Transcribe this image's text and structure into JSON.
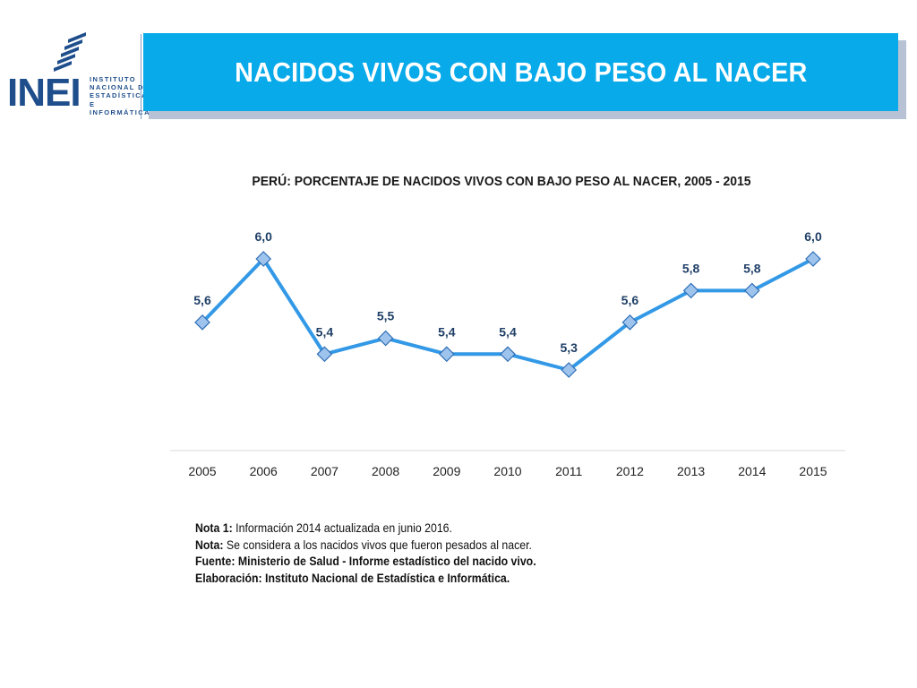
{
  "logo": {
    "word": "INEI",
    "lines": [
      "INSTITUTO",
      "NACIONAL DE",
      "ESTADÍSTICA E",
      "INFORMÁTICA"
    ]
  },
  "header": {
    "title": "NACIDOS VIVOS CON BAJO PESO AL NACER"
  },
  "colors": {
    "header_bg": "#08aaea",
    "series_line": "#3399e6",
    "marker_fill": "#9ec4ee",
    "marker_stroke": "#2f6fb5",
    "label_color": "#1f3f66"
  },
  "chart_data": {
    "type": "line",
    "title": "PERÚ: PORCENTAJE DE NACIDOS VIVOS CON BAJO PESO AL NACER, 2005 - 2015",
    "xlabel": "",
    "ylabel": "",
    "categories": [
      "2005",
      "2006",
      "2007",
      "2008",
      "2009",
      "2010",
      "2011",
      "2012",
      "2013",
      "2014",
      "2015"
    ],
    "series": [
      {
        "values": [
          5.6,
          6.0,
          5.4,
          5.5,
          5.4,
          5.4,
          5.3,
          5.6,
          5.8,
          5.8,
          6.0
        ],
        "labels": [
          "5,6",
          "6,0",
          "5,4",
          "5,5",
          "5,4",
          "5,4",
          "5,3",
          "5,6",
          "5,8",
          "5,8",
          "6,0"
        ]
      }
    ],
    "grid": false,
    "legend": "none",
    "marker": "diamond"
  },
  "notes": {
    "nota1_label": "Nota 1:",
    "nota1_text": " Información 2014 actualizada en junio 2016.",
    "nota_label": "Nota:",
    "nota_text": " Se considera a los nacidos vivos que fueron pesados al nacer.",
    "fuente": "Fuente: Ministerio de Salud - Informe estadístico del nacido vivo.",
    "elaboracion": "Elaboración: Instituto Nacional de Estadística e Informática."
  }
}
